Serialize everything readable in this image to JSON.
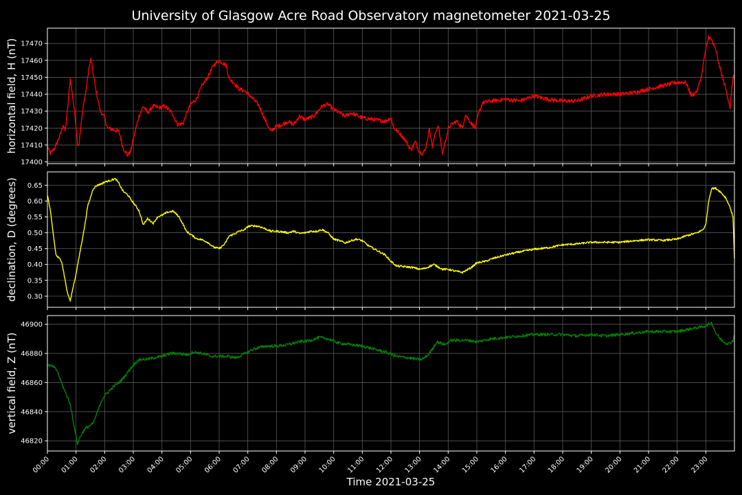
{
  "chart_data": {
    "type": "line",
    "title": "University of Glasgow Acre Road Observatory magnetometer 2021-03-25",
    "xlabel": "Time 2021-03-25",
    "x_unit": "hours",
    "xlim": [
      0,
      24
    ],
    "x_ticks": [
      "00:00",
      "01:00",
      "02:00",
      "03:00",
      "04:00",
      "05:00",
      "06:00",
      "07:00",
      "08:00",
      "09:00",
      "10:00",
      "11:00",
      "12:00",
      "13:00",
      "14:00",
      "15:00",
      "16:00",
      "17:00",
      "18:00",
      "19:00",
      "20:00",
      "21:00",
      "22:00",
      "23:00"
    ],
    "grid": true,
    "panels": [
      {
        "ylabel": "horizontal field, H (nT)",
        "color": "#ff0000",
        "ylim": [
          17399,
          17479
        ],
        "y_ticks": [
          "17400",
          "17410",
          "17420",
          "17430",
          "17440",
          "17450",
          "17460",
          "17470"
        ],
        "y_tick_values": [
          17400,
          17410,
          17420,
          17430,
          17440,
          17450,
          17460,
          17470
        ],
        "noise": 1.2,
        "x": [
          0,
          0.1,
          0.25,
          0.45,
          0.55,
          0.62,
          0.7,
          0.75,
          0.8,
          0.95,
          1.05,
          1.1,
          1.25,
          1.35,
          1.45,
          1.52,
          1.6,
          1.7,
          1.85,
          2.0,
          2.1,
          2.3,
          2.5,
          2.65,
          2.8,
          2.9,
          3.05,
          3.2,
          3.35,
          3.5,
          3.7,
          3.9,
          4.1,
          4.35,
          4.55,
          4.75,
          4.85,
          5.0,
          5.2,
          5.4,
          5.6,
          5.8,
          6.0,
          6.25,
          6.35,
          6.5,
          6.7,
          6.9,
          7.2,
          7.4,
          7.6,
          7.8,
          8.0,
          8.2,
          8.4,
          8.6,
          8.8,
          9.0,
          9.3,
          9.6,
          9.8,
          10.0,
          10.2,
          10.4,
          10.6,
          11.0,
          11.4,
          11.8,
          12.0,
          12.1,
          12.3,
          12.5,
          12.7,
          12.85,
          13.0,
          13.1,
          13.2,
          13.35,
          13.45,
          13.55,
          13.65,
          13.8,
          13.9,
          14.0,
          14.1,
          14.3,
          14.5,
          14.6,
          14.8,
          14.95,
          15.05,
          15.2,
          15.5,
          16.0,
          16.5,
          17.0,
          17.5,
          18.0,
          18.5,
          19.0,
          19.5,
          20.0,
          20.5,
          21.0,
          21.5,
          22.0,
          22.3,
          22.5,
          22.7,
          22.85,
          22.95,
          23.1,
          23.2,
          23.35,
          23.5,
          23.7,
          23.85,
          23.95,
          24.0
        ],
        "y": [
          17409,
          17405,
          17408,
          17416,
          17422,
          17418,
          17430,
          17440,
          17449,
          17430,
          17411,
          17410,
          17433,
          17442,
          17455,
          17461,
          17452,
          17442,
          17430,
          17426,
          17420,
          17419,
          17418,
          17408,
          17404,
          17406,
          17417,
          17427,
          17433,
          17429,
          17433,
          17432,
          17433,
          17429,
          17422,
          17423,
          17428,
          17434,
          17437,
          17445,
          17450,
          17457,
          17460,
          17457,
          17449,
          17447,
          17443,
          17442,
          17437,
          17433,
          17425,
          17418,
          17421,
          17422,
          17424,
          17422,
          17427,
          17425,
          17427,
          17433,
          17434,
          17431,
          17429,
          17427,
          17429,
          17426,
          17425,
          17424,
          17426,
          17420,
          17417,
          17413,
          17407,
          17412,
          17406,
          17405,
          17407,
          17420,
          17409,
          17417,
          17422,
          17405,
          17412,
          17419,
          17422,
          17424,
          17420,
          17428,
          17423,
          17420,
          17428,
          17435,
          17436,
          17437,
          17436,
          17439,
          17437,
          17436,
          17436,
          17439,
          17440,
          17440,
          17441,
          17443,
          17445,
          17447,
          17447,
          17439,
          17442,
          17451,
          17462,
          17474,
          17472,
          17466,
          17455,
          17443,
          17432,
          17450,
          17450
        ]
      },
      {
        "ylabel": "declination, D (degrees)",
        "color": "#ffff00",
        "ylim": [
          0.265,
          0.692
        ],
        "y_ticks": [
          "0.30",
          "0.35",
          "0.40",
          "0.45",
          "0.50",
          "0.55",
          "0.60",
          "0.65"
        ],
        "y_tick_values": [
          0.3,
          0.35,
          0.4,
          0.45,
          0.5,
          0.55,
          0.6,
          0.65
        ],
        "noise": 0.003,
        "x": [
          0,
          0.1,
          0.2,
          0.3,
          0.4,
          0.5,
          0.6,
          0.7,
          0.8,
          0.9,
          1.0,
          1.1,
          1.2,
          1.3,
          1.4,
          1.5,
          1.6,
          1.75,
          1.9,
          2.0,
          2.2,
          2.35,
          2.4,
          2.5,
          2.65,
          2.8,
          3.0,
          3.2,
          3.35,
          3.5,
          3.7,
          3.85,
          4.0,
          4.2,
          4.4,
          4.6,
          4.75,
          4.85,
          5.0,
          5.2,
          5.4,
          5.6,
          5.8,
          6.0,
          6.2,
          6.35,
          6.5,
          6.7,
          6.9,
          7.0,
          7.2,
          7.4,
          7.6,
          7.8,
          8.0,
          8.2,
          8.4,
          8.6,
          8.8,
          9.0,
          9.2,
          9.4,
          9.6,
          9.8,
          10.0,
          10.2,
          10.4,
          10.6,
          10.8,
          11.0,
          11.2,
          11.5,
          11.8,
          12.0,
          12.2,
          12.5,
          12.8,
          13.0,
          13.2,
          13.5,
          13.8,
          14.0,
          14.2,
          14.5,
          14.8,
          15.0,
          15.3,
          15.6,
          16.0,
          16.5,
          17.0,
          17.5,
          18.0,
          18.5,
          19.0,
          19.5,
          20.0,
          20.5,
          21.0,
          21.5,
          22.0,
          22.3,
          22.5,
          22.7,
          22.9,
          23.0,
          23.1,
          23.2,
          23.35,
          23.5,
          23.7,
          23.85,
          23.95,
          24.0
        ],
        "y": [
          0.62,
          0.57,
          0.5,
          0.43,
          0.42,
          0.41,
          0.36,
          0.31,
          0.285,
          0.33,
          0.37,
          0.42,
          0.47,
          0.52,
          0.58,
          0.61,
          0.64,
          0.65,
          0.655,
          0.66,
          0.665,
          0.67,
          0.668,
          0.655,
          0.63,
          0.62,
          0.595,
          0.57,
          0.525,
          0.545,
          0.53,
          0.55,
          0.555,
          0.565,
          0.568,
          0.55,
          0.525,
          0.505,
          0.495,
          0.482,
          0.478,
          0.47,
          0.455,
          0.45,
          0.465,
          0.49,
          0.495,
          0.505,
          0.51,
          0.52,
          0.522,
          0.52,
          0.513,
          0.505,
          0.505,
          0.503,
          0.5,
          0.505,
          0.498,
          0.5,
          0.505,
          0.505,
          0.51,
          0.5,
          0.48,
          0.475,
          0.468,
          0.475,
          0.48,
          0.475,
          0.46,
          0.445,
          0.43,
          0.41,
          0.395,
          0.393,
          0.39,
          0.385,
          0.388,
          0.4,
          0.385,
          0.385,
          0.38,
          0.375,
          0.39,
          0.405,
          0.41,
          0.42,
          0.43,
          0.44,
          0.448,
          0.453,
          0.462,
          0.465,
          0.47,
          0.47,
          0.47,
          0.475,
          0.478,
          0.476,
          0.48,
          0.49,
          0.495,
          0.5,
          0.51,
          0.525,
          0.6,
          0.64,
          0.64,
          0.63,
          0.61,
          0.58,
          0.55,
          0.42
        ]
      },
      {
        "ylabel": "vertical field, Z (nT)",
        "color": "#008000",
        "ylim": [
          46813,
          46906
        ],
        "y_ticks": [
          "46820",
          "46840",
          "46860",
          "46880",
          "46900"
        ],
        "y_tick_values": [
          46820,
          46840,
          46860,
          46880,
          46900
        ],
        "noise": 1.0,
        "x": [
          0,
          0.2,
          0.35,
          0.45,
          0.55,
          0.65,
          0.75,
          0.85,
          0.95,
          1.05,
          1.15,
          1.3,
          1.45,
          1.6,
          1.75,
          1.9,
          2.0,
          2.2,
          2.35,
          2.5,
          2.65,
          2.8,
          3.0,
          3.15,
          3.3,
          3.5,
          3.7,
          4.0,
          4.3,
          4.6,
          4.9,
          5.1,
          5.4,
          5.7,
          6.0,
          6.3,
          6.6,
          6.9,
          7.2,
          7.6,
          8.0,
          8.4,
          8.8,
          9.2,
          9.5,
          9.8,
          10.2,
          10.6,
          11.0,
          11.4,
          11.8,
          12.2,
          12.6,
          12.9,
          13.1,
          13.3,
          13.45,
          13.6,
          13.75,
          13.9,
          14.1,
          14.4,
          14.7,
          15.0,
          15.5,
          16.0,
          16.5,
          17.0,
          17.5,
          18.0,
          18.5,
          19.0,
          19.5,
          20.0,
          20.5,
          21.0,
          21.5,
          22.0,
          22.5,
          22.8,
          23.0,
          23.1,
          23.2,
          23.35,
          23.5,
          23.7,
          23.85,
          23.95,
          24.0
        ],
        "y": [
          46872,
          46871,
          46868,
          46862,
          46857,
          46852,
          46848,
          46840,
          46828,
          46818,
          46823,
          46828,
          46830,
          46832,
          46840,
          46848,
          46851,
          46855,
          46858,
          46860,
          46863,
          46867,
          46872,
          46875,
          46876,
          46876,
          46877,
          46878,
          46880,
          46880,
          46879,
          46881,
          46880,
          46878,
          46878,
          46878,
          46877,
          46880,
          46883,
          46885,
          46885,
          46886,
          46888,
          46889,
          46891,
          46890,
          46887,
          46886,
          46885,
          46883,
          46881,
          46878,
          46877,
          46876,
          46876,
          46879,
          46883,
          46888,
          46887,
          46886,
          46889,
          46889,
          46889,
          46888,
          46890,
          46891,
          46892,
          46893,
          46893,
          46893,
          46892,
          46893,
          46892,
          46893,
          46894,
          46895,
          46895,
          46895,
          46897,
          46898,
          46899,
          46900,
          46901,
          46894,
          46890,
          46887,
          46887,
          46889,
          46893
        ]
      }
    ]
  }
}
